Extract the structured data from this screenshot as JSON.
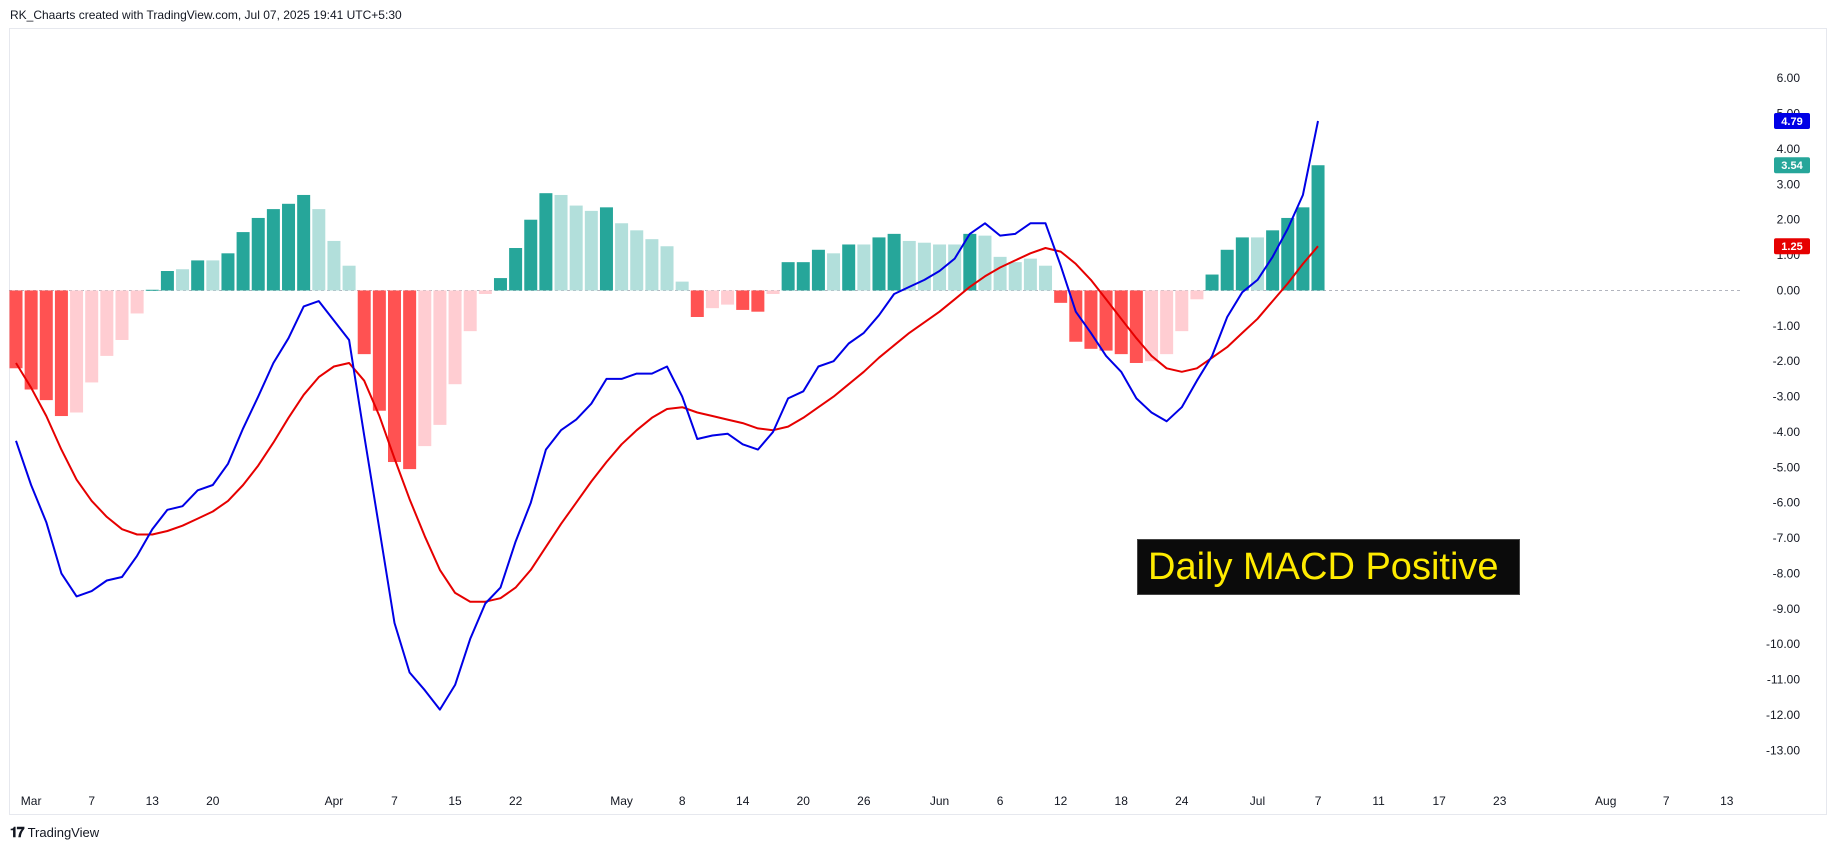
{
  "header": {
    "text": "RK_Chaarts created with TradingView.com, Jul 07, 2025 19:41 UTC+5:30"
  },
  "footer": {
    "logo_glyph": "𝟏𝟕",
    "brand": "TradingView"
  },
  "annotation": {
    "text": "Daily MACD Positive"
  },
  "colors": {
    "macd": "#0000e6",
    "signal": "#e60000",
    "hist_pos_strong": "#26a69a",
    "hist_pos_weak": "#b2dfdb",
    "hist_neg_strong": "#ff5252",
    "hist_neg_weak": "#ffcdd2",
    "zero_line": "#b2b5be",
    "badge_macd": "#0000e6",
    "badge_hist": "#26a69a",
    "badge_signal": "#e60000"
  },
  "chart_data": {
    "type": "bar",
    "description_type": "MACD histogram with MACD and signal lines",
    "ylim": [
      -13.5,
      6.6
    ],
    "y_ticks": [
      "6.00",
      "5.00",
      "4.00",
      "3.00",
      "2.00",
      "1.00",
      "0.00",
      "-1.00",
      "-2.00",
      "-3.00",
      "-4.00",
      "-5.00",
      "-6.00",
      "-7.00",
      "-8.00",
      "-9.00",
      "-10.00",
      "-11.00",
      "-12.00",
      "-13.00"
    ],
    "y_tick_values": [
      6,
      5,
      4,
      3,
      2,
      1,
      0,
      -1,
      -2,
      -3,
      -4,
      -5,
      -6,
      -7,
      -8,
      -9,
      -10,
      -11,
      -12,
      -13
    ],
    "x_ticks": [
      {
        "label": "Mar",
        "i": 1
      },
      {
        "label": "7",
        "i": 5
      },
      {
        "label": "13",
        "i": 9
      },
      {
        "label": "20",
        "i": 13
      },
      {
        "label": "Apr",
        "i": 21
      },
      {
        "label": "7",
        "i": 25
      },
      {
        "label": "15",
        "i": 29
      },
      {
        "label": "22",
        "i": 33
      },
      {
        "label": "May",
        "i": 40
      },
      {
        "label": "8",
        "i": 44
      },
      {
        "label": "14",
        "i": 48
      },
      {
        "label": "20",
        "i": 52
      },
      {
        "label": "26",
        "i": 56
      },
      {
        "label": "Jun",
        "i": 61
      },
      {
        "label": "6",
        "i": 65
      },
      {
        "label": "12",
        "i": 69
      },
      {
        "label": "18",
        "i": 73
      },
      {
        "label": "24",
        "i": 77
      },
      {
        "label": "Jul",
        "i": 82
      },
      {
        "label": "7",
        "i": 86
      },
      {
        "label": "11",
        "i": 90
      },
      {
        "label": "17",
        "i": 94
      },
      {
        "label": "23",
        "i": 98
      },
      {
        "label": "Aug",
        "i": 105
      },
      {
        "label": "7",
        "i": 109
      },
      {
        "label": "13",
        "i": 113
      }
    ],
    "histogram": [
      -2.2,
      -2.8,
      -3.1,
      -3.55,
      -3.45,
      -2.6,
      -1.85,
      -1.4,
      -0.65,
      0.02,
      0.55,
      0.6,
      0.85,
      0.85,
      1.05,
      1.65,
      2.05,
      2.3,
      2.45,
      2.7,
      2.3,
      1.4,
      0.7,
      -1.8,
      -3.4,
      -4.85,
      -5.05,
      -4.4,
      -3.8,
      -2.65,
      -1.15,
      -0.1,
      0.35,
      1.2,
      2.0,
      2.75,
      2.7,
      2.4,
      2.25,
      2.35,
      1.9,
      1.7,
      1.45,
      1.25,
      0.25,
      -0.75,
      -0.5,
      -0.4,
      -0.55,
      -0.6,
      -0.1,
      0.8,
      0.8,
      1.15,
      1.05,
      1.3,
      1.3,
      1.5,
      1.6,
      1.4,
      1.35,
      1.3,
      1.3,
      1.6,
      1.55,
      0.95,
      0.8,
      0.9,
      0.7,
      -0.35,
      -1.45,
      -1.65,
      -1.7,
      -1.8,
      -2.05,
      -2.0,
      -1.8,
      -1.15,
      -0.25,
      0.45,
      1.15,
      1.5,
      1.5,
      1.7,
      2.05,
      2.35,
      3.54
    ],
    "histogram_shade": [
      "s",
      "s",
      "s",
      "s",
      "w",
      "w",
      "w",
      "w",
      "w",
      "s",
      "s",
      "w",
      "s",
      "w",
      "s",
      "s",
      "s",
      "s",
      "s",
      "s",
      "w",
      "w",
      "w",
      "s",
      "s",
      "s",
      "s",
      "w",
      "w",
      "w",
      "w",
      "w",
      "s",
      "s",
      "s",
      "s",
      "w",
      "w",
      "w",
      "s",
      "w",
      "w",
      "w",
      "w",
      "w",
      "s",
      "w",
      "w",
      "s",
      "s",
      "w",
      "s",
      "s",
      "s",
      "w",
      "s",
      "w",
      "s",
      "s",
      "w",
      "w",
      "w",
      "w",
      "s",
      "w",
      "w",
      "w",
      "w",
      "w",
      "s",
      "s",
      "s",
      "s",
      "s",
      "s",
      "w",
      "w",
      "w",
      "w",
      "s",
      "s",
      "s",
      "w",
      "s",
      "s",
      "s",
      "s"
    ],
    "series": [
      {
        "name": "MACD",
        "values": [
          -4.25,
          -5.5,
          -6.55,
          -8.0,
          -8.65,
          -8.5,
          -8.2,
          -8.1,
          -7.5,
          -6.75,
          -6.2,
          -6.1,
          -5.65,
          -5.5,
          -4.9,
          -3.9,
          -3.0,
          -2.05,
          -1.35,
          -0.45,
          -0.3,
          -0.85,
          -1.4,
          -4.1,
          -6.75,
          -9.4,
          -10.8,
          -11.3,
          -11.85,
          -11.15,
          -9.85,
          -8.85,
          -8.4,
          -7.1,
          -6.0,
          -4.5,
          -3.95,
          -3.65,
          -3.2,
          -2.5,
          -2.5,
          -2.35,
          -2.35,
          -2.15,
          -3.0,
          -4.2,
          -4.1,
          -4.05,
          -4.35,
          -4.5,
          -4.0,
          -3.05,
          -2.85,
          -2.15,
          -2.0,
          -1.5,
          -1.2,
          -0.7,
          -0.1,
          0.1,
          0.3,
          0.55,
          0.9,
          1.6,
          1.9,
          1.55,
          1.6,
          1.9,
          1.9,
          0.7,
          -0.6,
          -1.2,
          -1.85,
          -2.3,
          -3.05,
          -3.45,
          -3.7,
          -3.3,
          -2.55,
          -1.85,
          -0.75,
          -0.05,
          0.3,
          0.95,
          1.75,
          2.7,
          4.79
        ]
      },
      {
        "name": "Signal",
        "values": [
          -2.05,
          -2.75,
          -3.55,
          -4.5,
          -5.35,
          -5.95,
          -6.4,
          -6.75,
          -6.9,
          -6.9,
          -6.8,
          -6.65,
          -6.45,
          -6.25,
          -5.95,
          -5.5,
          -4.95,
          -4.3,
          -3.6,
          -2.95,
          -2.45,
          -2.15,
          -2.05,
          -2.55,
          -3.55,
          -4.75,
          -5.9,
          -6.95,
          -7.9,
          -8.55,
          -8.8,
          -8.8,
          -8.7,
          -8.4,
          -7.9,
          -7.25,
          -6.6,
          -6.0,
          -5.4,
          -4.85,
          -4.35,
          -3.95,
          -3.6,
          -3.35,
          -3.3,
          -3.45,
          -3.55,
          -3.65,
          -3.75,
          -3.9,
          -3.95,
          -3.85,
          -3.6,
          -3.3,
          -3.0,
          -2.65,
          -2.3,
          -1.9,
          -1.55,
          -1.2,
          -0.9,
          -0.6,
          -0.25,
          0.1,
          0.4,
          0.65,
          0.85,
          1.05,
          1.2,
          1.1,
          0.75,
          0.3,
          -0.25,
          -0.8,
          -1.35,
          -1.85,
          -2.2,
          -2.3,
          -2.2,
          -1.9,
          -1.6,
          -1.2,
          -0.8,
          -0.3,
          0.2,
          0.75,
          1.25
        ]
      }
    ],
    "last_values": {
      "macd": "4.79",
      "histogram": "3.54",
      "signal": "1.25"
    },
    "grid": false,
    "legend": "none"
  }
}
